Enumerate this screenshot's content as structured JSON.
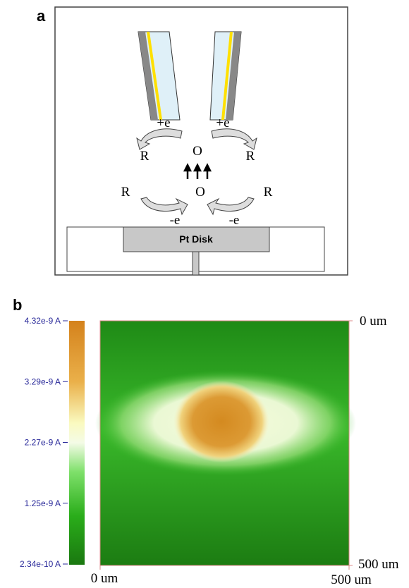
{
  "panel_a": {
    "label": "a",
    "electrode_labels": [
      "+e",
      "+e"
    ],
    "upper_species": [
      "R",
      "O",
      "R"
    ],
    "lower_species": [
      "R",
      "O",
      "R"
    ],
    "lower_electron_labels": [
      "-e",
      "-e"
    ],
    "substrate_label": "Pt Disk"
  },
  "panel_b": {
    "label": "b",
    "colorbar_labels": [
      "4.32e-9 A",
      "3.29e-9 A",
      "2.27e-9 A",
      "1.25e-9 A",
      "2.34e-10 A"
    ],
    "x_axis_labels": [
      "0 um",
      "500 um"
    ],
    "y_axis_labels": [
      "0 um",
      "500 um"
    ]
  }
}
